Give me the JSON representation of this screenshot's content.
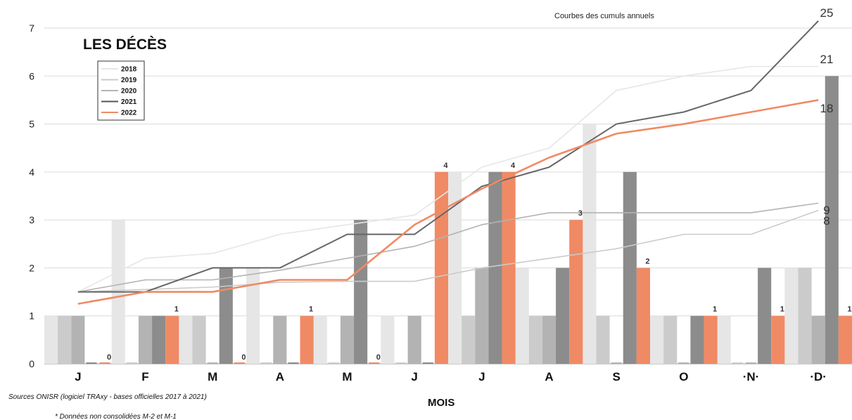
{
  "chart_data": {
    "type": "bar",
    "title": "LES DÉCÈS",
    "subtitle": "Courbes des cumuls annuels",
    "xlabel": "MOIS",
    "ylabel": "",
    "categories": [
      "J",
      "F",
      "M",
      "A",
      "M",
      "J",
      "J",
      "A",
      "S",
      "O",
      "·N·",
      "·D·"
    ],
    "ylim": [
      0,
      7
    ],
    "yticks": [
      "0",
      "1",
      "2",
      "3",
      "4",
      "5",
      "6",
      "7"
    ],
    "grid": "horizontal",
    "legend_position": "top-left",
    "series": [
      {
        "name": "2018",
        "color": "#e6e6e6",
        "values": [
          1,
          3,
          1,
          2,
          1,
          1,
          4,
          2,
          5,
          1,
          1,
          2
        ],
        "cumulative": [
          1.5,
          2.2,
          2.3,
          2.7,
          2.9,
          3.1,
          4.1,
          4.5,
          5.7,
          6.0,
          6.2,
          6.2
        ]
      },
      {
        "name": "2019",
        "color": "#cbcbcb",
        "values": [
          1,
          0,
          1,
          0,
          0,
          0,
          1,
          1,
          1,
          1,
          0,
          2
        ],
        "cumulative": [
          1.5,
          1.55,
          1.6,
          1.7,
          1.72,
          1.72,
          2.0,
          2.2,
          2.4,
          2.7,
          2.7,
          3.2
        ]
      },
      {
        "name": "2020",
        "color": "#b3b3b3",
        "values": [
          1,
          1,
          0,
          1,
          1,
          1,
          2,
          1,
          0,
          0,
          0,
          1
        ],
        "cumulative": [
          1.5,
          1.75,
          1.75,
          1.95,
          2.2,
          2.45,
          2.9,
          3.15,
          3.15,
          3.15,
          3.15,
          3.35
        ]
      },
      {
        "name": "2021",
        "color": "#8c8c8c",
        "values": [
          0,
          1,
          2,
          0,
          3,
          0,
          4,
          2,
          4,
          1,
          2,
          6
        ],
        "cumulative": [
          1.5,
          1.5,
          2.0,
          2.0,
          2.7,
          2.7,
          3.7,
          4.1,
          5.0,
          5.25,
          5.7,
          7.15
        ]
      },
      {
        "name": "2022",
        "color": "#f08a64",
        "values": [
          0,
          1,
          0,
          1,
          0,
          4,
          4,
          3,
          2,
          1,
          1,
          1
        ],
        "cumulative": [
          1.25,
          1.5,
          1.5,
          1.75,
          1.75,
          2.9,
          3.65,
          4.3,
          4.8,
          5.0,
          5.25,
          5.5
        ]
      }
    ],
    "data_labels_2022": [
      "0",
      "1",
      "0",
      "1",
      "0",
      "4",
      "4",
      "3",
      "2",
      "1",
      "1",
      "1"
    ],
    "end_labels": [
      {
        "series": "2021",
        "text": "25"
      },
      {
        "series": "2021-bar",
        "text": "21"
      },
      {
        "series": "2022",
        "text": "18"
      },
      {
        "series": "2020",
        "text": "9"
      },
      {
        "series": "2019",
        "text": "8"
      }
    ],
    "legend": [
      "2018",
      "2019",
      "2020",
      "2021",
      "2022"
    ]
  },
  "footer": {
    "source": "Sources ONISR (logiciel TRAxy - bases officielles 2017 à 2021)",
    "note": "* Données non consolidées M-2 et M-1"
  }
}
